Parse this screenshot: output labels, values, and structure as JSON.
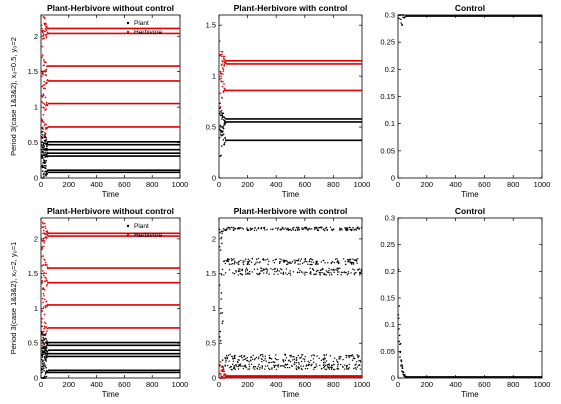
{
  "chart_data": [
    {
      "type": "scatter",
      "title": "Plant-Herbivore without control",
      "xlabel": "Time",
      "ylabel": "Period 3(case 1&3&2), x₀=0.5, y₀=2",
      "xlim": [
        0,
        1000
      ],
      "ylim": [
        0,
        2.3
      ],
      "xticks": [
        "0",
        "200",
        "400",
        "600",
        "800",
        "1000"
      ],
      "yticks": [
        "0",
        "0.5",
        "1",
        "1.5",
        "2"
      ],
      "legend": {
        "position": "top-right",
        "entries": [
          "Plant",
          "Herbivore"
        ]
      },
      "series": [
        {
          "name": "Plant",
          "color": "#000000",
          "mode": "levels",
          "levels": [
            0.08,
            0.11,
            0.31,
            0.35,
            0.4,
            0.47,
            0.51
          ]
        },
        {
          "name": "Herbivore",
          "color": "#e00000",
          "mode": "levels",
          "levels": [
            0.72,
            1.05,
            1.37,
            1.58,
            2.04,
            2.11
          ]
        }
      ]
    },
    {
      "type": "scatter",
      "title": "Plant-Herbivore with control",
      "xlabel": "Time",
      "ylabel": "",
      "xlim": [
        0,
        1000
      ],
      "ylim": [
        0,
        1.6
      ],
      "xticks": [
        "0",
        "200",
        "400",
        "600",
        "800",
        "1000"
      ],
      "yticks": [
        "0",
        "0.5",
        "1",
        "1.5"
      ],
      "series": [
        {
          "color": "#000000",
          "mode": "levels",
          "levels": [
            0.37,
            0.55,
            0.58
          ]
        },
        {
          "color": "#e00000",
          "mode": "levels",
          "levels": [
            0.86,
            1.12,
            1.15
          ]
        }
      ]
    },
    {
      "type": "line",
      "title": "Control",
      "xlabel": "Time",
      "ylabel": "",
      "xlim": [
        0,
        1000
      ],
      "ylim": [
        0,
        0.3
      ],
      "xticks": [
        "0",
        "200",
        "400",
        "600",
        "800",
        "1000"
      ],
      "yticks": [
        "0",
        "0.05",
        "0.1",
        "0.15",
        "0.2",
        "0.25",
        "0.3"
      ],
      "series": [
        {
          "color": "#000000",
          "mode": "levels",
          "levels": [
            0.298
          ]
        }
      ]
    },
    {
      "type": "scatter",
      "title": "Plant-Herbivore without control",
      "xlabel": "Time",
      "ylabel": "Period 3(case 1&3&2), x₀=2, y₀=1",
      "xlim": [
        0,
        1000
      ],
      "ylim": [
        0,
        2.3
      ],
      "xticks": [
        "0",
        "200",
        "400",
        "600",
        "800",
        "1000"
      ],
      "yticks": [
        "0",
        "0.5",
        "1",
        "1.5",
        "2"
      ],
      "legend": {
        "position": "top-right",
        "entries": [
          "Plant",
          "Herbivore"
        ]
      },
      "series": [
        {
          "name": "Plant",
          "color": "#000000",
          "mode": "levels",
          "levels": [
            0.08,
            0.11,
            0.31,
            0.35,
            0.4,
            0.47,
            0.51
          ]
        },
        {
          "name": "Herbivore",
          "color": "#e00000",
          "mode": "levels",
          "levels": [
            0.72,
            1.05,
            1.37,
            1.58,
            2.04,
            2.08
          ]
        }
      ]
    },
    {
      "type": "scatter",
      "title": "Plant-Herbivore with control",
      "xlabel": "Time",
      "ylabel": "",
      "xlim": [
        0,
        1000
      ],
      "ylim": [
        0,
        2.3
      ],
      "xticks": [
        "0",
        "200",
        "400",
        "600",
        "800",
        "1000"
      ],
      "yticks": [
        "0",
        "0.5",
        "1",
        "1.5",
        "2"
      ],
      "series": [
        {
          "color": "#000000",
          "mode": "bands",
          "bands": [
            [
              2.12,
              2.17
            ],
            [
              1.63,
              1.72
            ],
            [
              1.48,
              1.58
            ],
            [
              0.22,
              0.34
            ],
            [
              0.12,
              0.2
            ]
          ]
        },
        {
          "color": "#e00000",
          "mode": "levels",
          "levels": [
            0.01,
            0.03
          ]
        }
      ]
    },
    {
      "type": "line",
      "title": "Control",
      "xlabel": "Time",
      "ylabel": "",
      "xlim": [
        0,
        1000
      ],
      "ylim": [
        0,
        0.3
      ],
      "xticks": [
        "0",
        "200",
        "400",
        "600",
        "800",
        "1000"
      ],
      "yticks": [
        "0",
        "0.05",
        "0.1",
        "0.15",
        "0.2",
        "0.25",
        "0.3"
      ],
      "series": [
        {
          "color": "#000000",
          "mode": "decay",
          "start": 0.17,
          "settle": 0.002
        }
      ]
    }
  ]
}
